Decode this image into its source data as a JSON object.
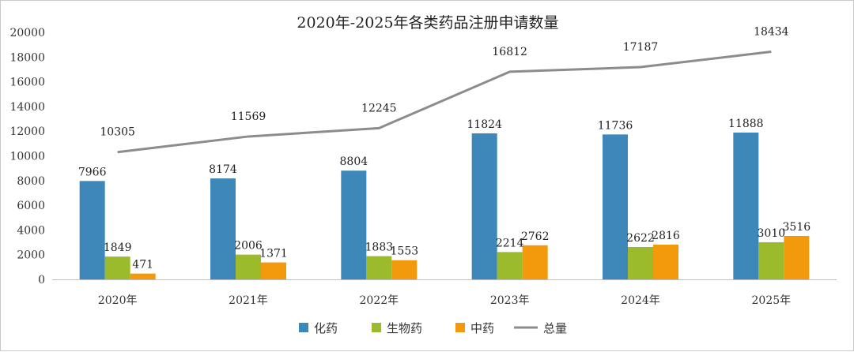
{
  "chart_data": {
    "type": "bar",
    "title": "2020年-2025年各类药品注册申请数量",
    "categories": [
      "2020年",
      "2021年",
      "2022年",
      "2023年",
      "2024年",
      "2025年"
    ],
    "ylim": [
      0,
      20000
    ],
    "yticks": [
      0,
      2000,
      4000,
      6000,
      8000,
      10000,
      12000,
      14000,
      16000,
      18000,
      20000
    ],
    "grid": false,
    "legend_position": "bottom",
    "series": [
      {
        "name": "化药",
        "kind": "bar",
        "color": "#3d88b9",
        "values": [
          7966,
          8174,
          8804,
          11824,
          11736,
          11888
        ]
      },
      {
        "name": "生物药",
        "kind": "bar",
        "color": "#9bbb2d",
        "values": [
          1849,
          2006,
          1883,
          2214,
          2622,
          3010
        ]
      },
      {
        "name": "中药",
        "kind": "bar",
        "color": "#f39a0c",
        "values": [
          471,
          1371,
          1553,
          2762,
          2816,
          3516
        ]
      },
      {
        "name": "总量",
        "kind": "line",
        "color": "#8c8c8c",
        "values": [
          10305,
          11569,
          12245,
          16812,
          17187,
          18434
        ]
      }
    ]
  }
}
